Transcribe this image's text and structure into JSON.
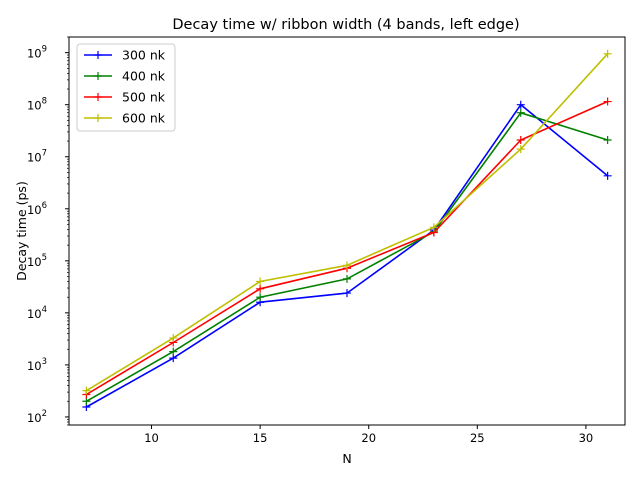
{
  "chart_data": {
    "type": "line",
    "title": "Decay time w/ ribbon width (4 bands, left edge)",
    "xlabel": "N",
    "ylabel": "Decay time (ps)",
    "xlim": [
      6.2,
      31.8
    ],
    "ylim": [
      70,
      2000000000
    ],
    "yscale": "log",
    "grid": false,
    "legend_position": "upper-left",
    "xticks": [
      10,
      15,
      20,
      25,
      30
    ],
    "xtick_labels": [
      "10",
      "15",
      "20",
      "25",
      "30"
    ],
    "yticks": [
      100,
      1000,
      10000,
      100000,
      1000000,
      10000000,
      100000000,
      1000000000
    ],
    "ytick_exponents": [
      "2",
      "3",
      "4",
      "5",
      "6",
      "7",
      "8",
      "9"
    ],
    "ytick_base": "10",
    "x": [
      7,
      11,
      15,
      19,
      23,
      27,
      31
    ],
    "series": [
      {
        "name": "300 nk",
        "color": "#0000ff",
        "values": [
          155,
          1350,
          16000,
          24000,
          390000,
          100000000,
          4300000
        ]
      },
      {
        "name": "400 nk",
        "color": "#008000",
        "values": [
          200,
          1800,
          20000,
          45000,
          360000,
          70000000,
          21000000
        ]
      },
      {
        "name": "500 nk",
        "color": "#ff0000",
        "values": [
          270,
          2700,
          29000,
          72000,
          350000,
          21000000,
          115000000
        ]
      },
      {
        "name": "600 nk",
        "color": "#bfbf00",
        "values": [
          320,
          3300,
          40000,
          82000,
          440000,
          14000000,
          950000000
        ]
      }
    ]
  }
}
